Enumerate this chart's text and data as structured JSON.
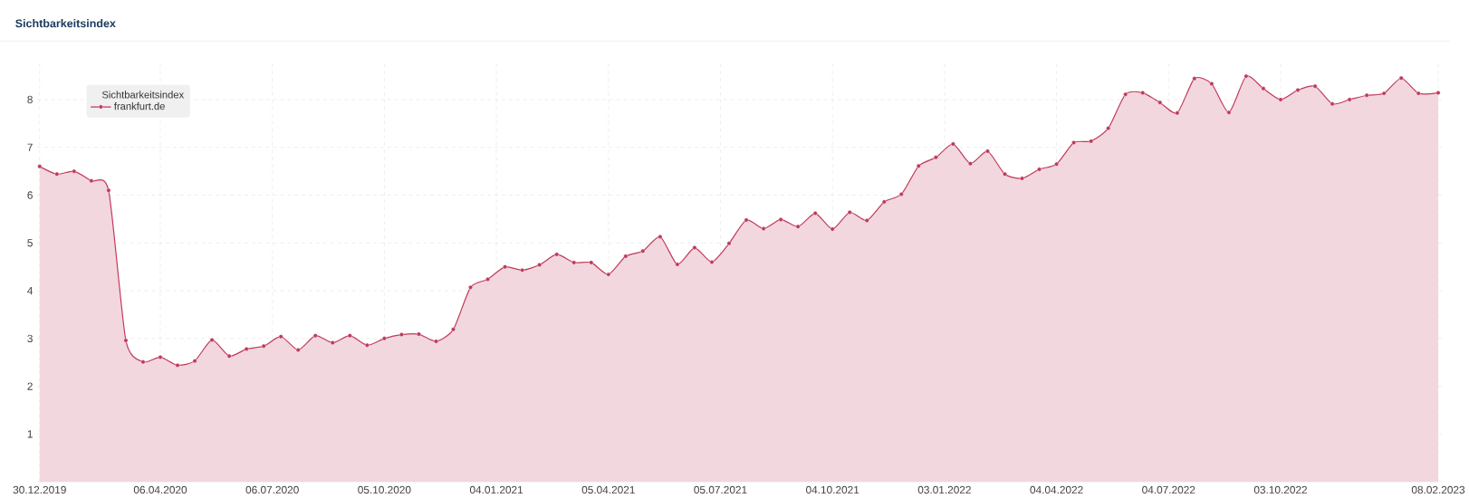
{
  "chart_data": {
    "type": "area",
    "title": "Sichtbarkeitsindex",
    "legend_title": "Sichtbarkeitsindex",
    "x": [
      "2019-12-30",
      "2020-01-13",
      "2020-01-27",
      "2020-02-10",
      "2020-02-24",
      "2020-03-09",
      "2020-03-23",
      "2020-04-06",
      "2020-04-20",
      "2020-05-04",
      "2020-05-18",
      "2020-06-01",
      "2020-06-15",
      "2020-06-29",
      "2020-07-13",
      "2020-07-27",
      "2020-08-10",
      "2020-08-24",
      "2020-09-07",
      "2020-09-21",
      "2020-10-05",
      "2020-10-19",
      "2020-11-02",
      "2020-11-16",
      "2020-11-30",
      "2020-12-14",
      "2020-12-28",
      "2021-01-11",
      "2021-01-25",
      "2021-02-08",
      "2021-02-22",
      "2021-03-08",
      "2021-03-22",
      "2021-04-05",
      "2021-04-19",
      "2021-05-03",
      "2021-05-17",
      "2021-05-31",
      "2021-06-14",
      "2021-06-28",
      "2021-07-12",
      "2021-07-26",
      "2021-08-09",
      "2021-08-23",
      "2021-09-06",
      "2021-09-20",
      "2021-10-04",
      "2021-10-18",
      "2021-11-01",
      "2021-11-15",
      "2021-11-29",
      "2021-12-13",
      "2021-12-27",
      "2022-01-10",
      "2022-01-24",
      "2022-02-07",
      "2022-02-21",
      "2022-03-07",
      "2022-03-21",
      "2022-04-04",
      "2022-04-18",
      "2022-05-02",
      "2022-05-16",
      "2022-05-30",
      "2022-06-13",
      "2022-06-27",
      "2022-07-11",
      "2022-07-25",
      "2022-08-08",
      "2022-08-22",
      "2022-09-05",
      "2022-09-19",
      "2022-10-03",
      "2022-10-17",
      "2022-10-31",
      "2022-11-14",
      "2022-11-28",
      "2022-12-12",
      "2022-12-26",
      "2023-01-09",
      "2023-01-23",
      "2023-02-08"
    ],
    "series": [
      {
        "name": "frankfurt.de",
        "color": "#c0395a",
        "values": [
          6.6,
          6.44,
          6.5,
          6.3,
          6.1,
          2.96,
          2.51,
          2.61,
          2.44,
          2.53,
          2.97,
          2.63,
          2.78,
          2.84,
          3.04,
          2.76,
          3.06,
          2.91,
          3.06,
          2.86,
          3.0,
          3.08,
          3.09,
          2.94,
          3.19,
          4.07,
          4.24,
          4.5,
          4.43,
          4.54,
          4.76,
          4.59,
          4.59,
          4.34,
          4.72,
          4.83,
          5.13,
          4.55,
          4.9,
          4.6,
          4.99,
          5.48,
          5.3,
          5.49,
          5.34,
          5.62,
          5.29,
          5.64,
          5.47,
          5.86,
          6.02,
          6.61,
          6.79,
          7.07,
          6.66,
          6.92,
          6.44,
          6.35,
          6.54,
          6.65,
          7.1,
          7.13,
          7.4,
          8.11,
          8.14,
          7.94,
          7.72,
          8.44,
          8.33,
          7.73,
          8.49,
          8.23,
          8.0,
          8.2,
          8.28,
          7.91,
          8.0,
          8.09,
          8.13,
          8.45,
          8.13,
          8.14
        ]
      }
    ],
    "xlim": [
      "2019-12-28",
      "2023-02-11"
    ],
    "ylim": [
      0,
      8.75
    ],
    "xticks": [
      {
        "value": "2019-12-30",
        "label": "30.12.2019"
      },
      {
        "value": "2020-04-06",
        "label": "06.04.2020"
      },
      {
        "value": "2020-07-06",
        "label": "06.07.2020"
      },
      {
        "value": "2020-10-05",
        "label": "05.10.2020"
      },
      {
        "value": "2021-01-04",
        "label": "04.01.2021"
      },
      {
        "value": "2021-04-05",
        "label": "05.04.2021"
      },
      {
        "value": "2021-07-05",
        "label": "05.07.2021"
      },
      {
        "value": "2021-10-04",
        "label": "04.10.2021"
      },
      {
        "value": "2022-01-03",
        "label": "03.01.2022"
      },
      {
        "value": "2022-04-04",
        "label": "04.04.2022"
      },
      {
        "value": "2022-07-04",
        "label": "04.07.2022"
      },
      {
        "value": "2022-10-03",
        "label": "03.10.2022"
      },
      {
        "value": "2023-02-08",
        "label": "08.02.2023"
      }
    ],
    "yticks": [
      1,
      2,
      3,
      4,
      5,
      6,
      7,
      8
    ],
    "grid": true,
    "legend": "top left",
    "marker": "circle"
  }
}
